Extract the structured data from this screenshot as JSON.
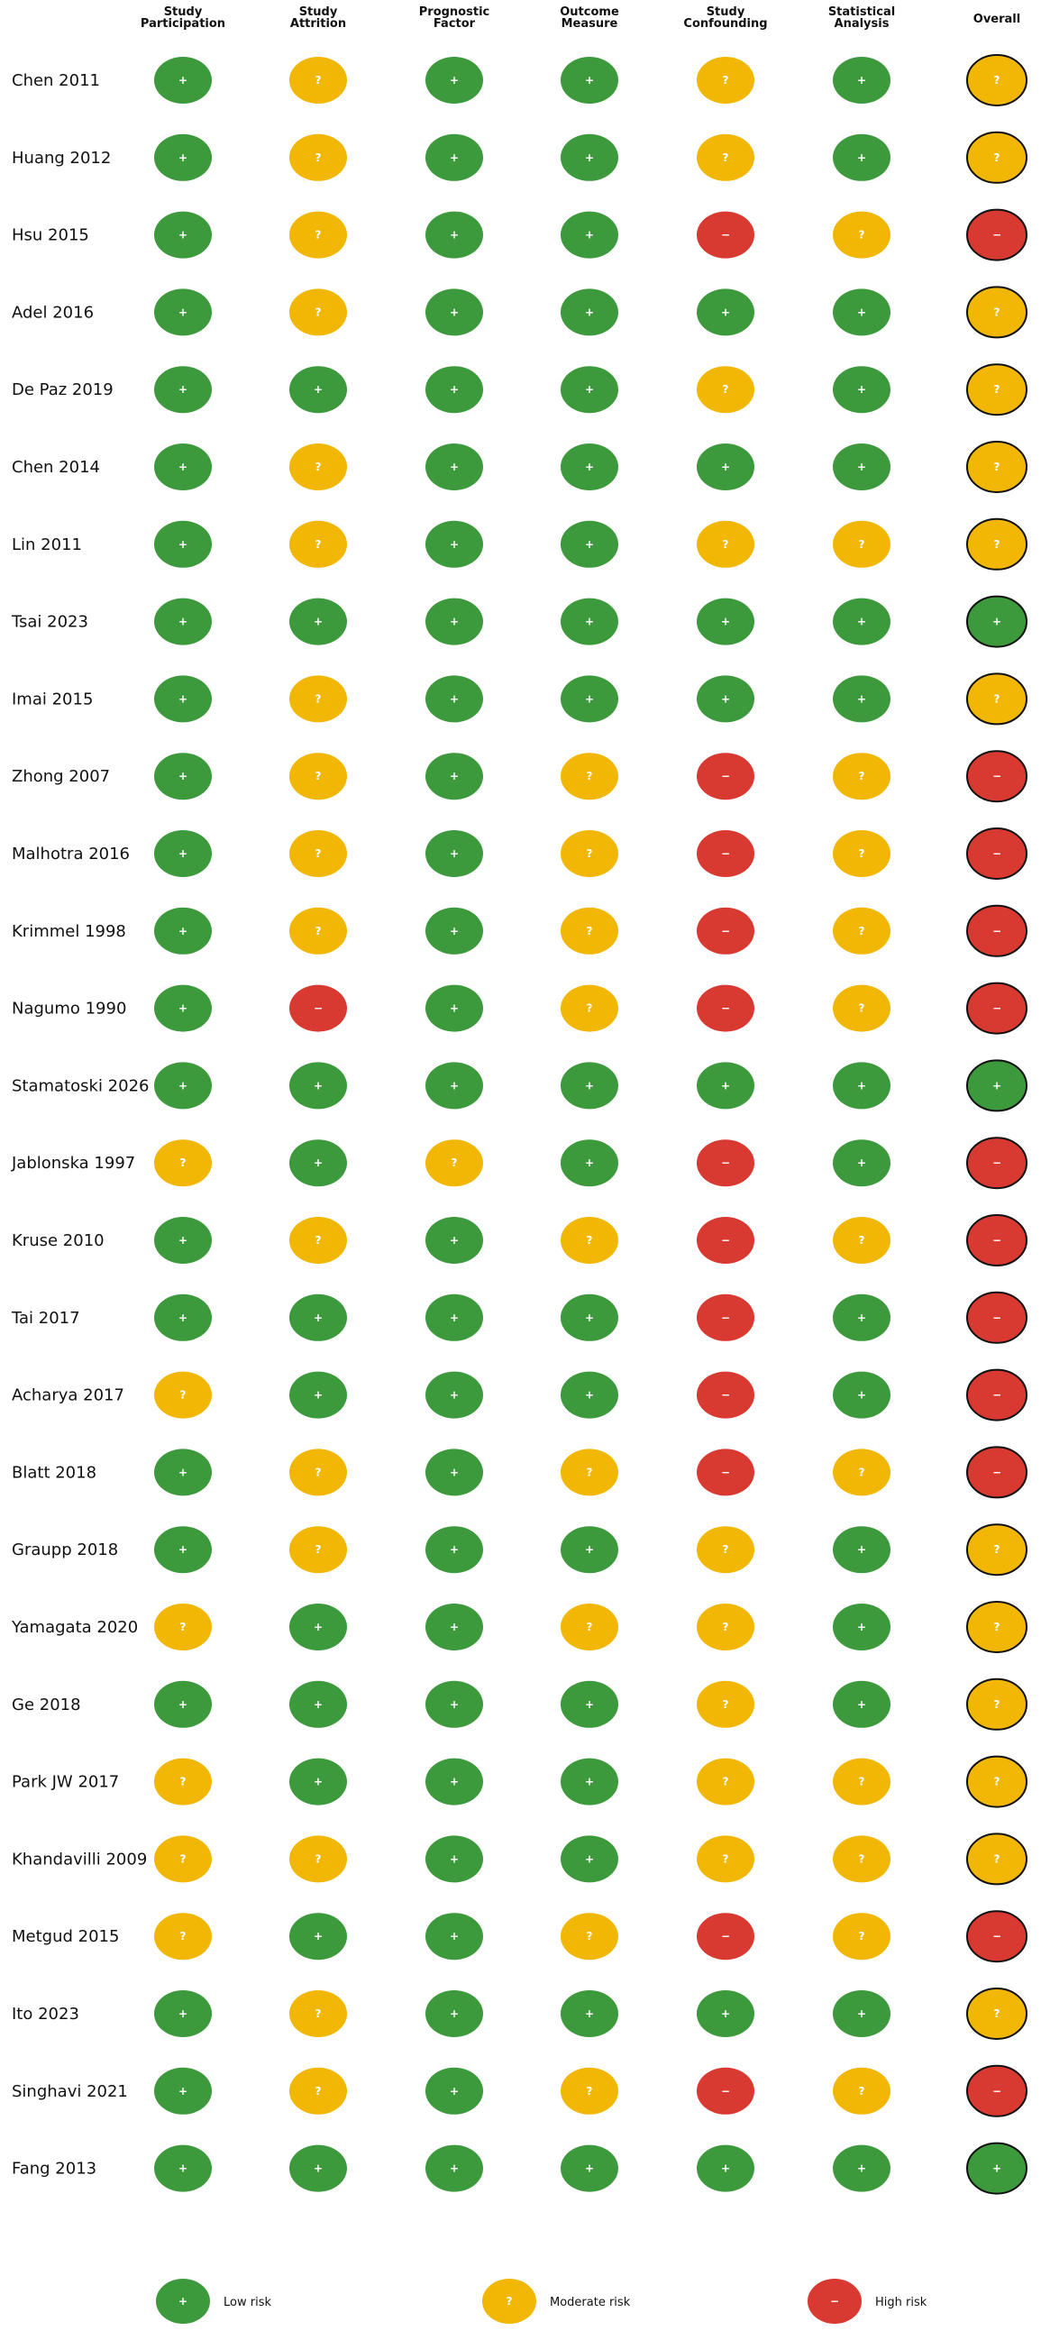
{
  "chart_data": {
    "type": "table",
    "columns": [
      "Study\nParticipation",
      "Study\nAttrition",
      "Prognostic\nFactor",
      "Outcome\nMeasure",
      "Study\nConfounding",
      "Statistical\nAnalysis",
      "Overall"
    ],
    "symbols": {
      "low": "+",
      "moderate": "?",
      "high": "−"
    },
    "colors": {
      "low": "#3c9a3c",
      "moderate": "#f2b705",
      "high": "#d83a32",
      "outline": "#111111"
    },
    "legend": [
      {
        "key": "low",
        "label": "Low risk"
      },
      {
        "key": "moderate",
        "label": "Moderate risk"
      },
      {
        "key": "high",
        "label": "High risk"
      }
    ],
    "rows": [
      {
        "study": "Chen 2011",
        "ratings": [
          "low",
          "moderate",
          "low",
          "low",
          "moderate",
          "low",
          "moderate"
        ]
      },
      {
        "study": "Huang 2012",
        "ratings": [
          "low",
          "moderate",
          "low",
          "low",
          "moderate",
          "low",
          "moderate"
        ]
      },
      {
        "study": "Hsu 2015",
        "ratings": [
          "low",
          "moderate",
          "low",
          "low",
          "high",
          "moderate",
          "high"
        ]
      },
      {
        "study": "Adel 2016",
        "ratings": [
          "low",
          "moderate",
          "low",
          "low",
          "low",
          "low",
          "moderate"
        ]
      },
      {
        "study": "De Paz 2019",
        "ratings": [
          "low",
          "low",
          "low",
          "low",
          "moderate",
          "low",
          "moderate"
        ]
      },
      {
        "study": "Chen 2014",
        "ratings": [
          "low",
          "moderate",
          "low",
          "low",
          "low",
          "low",
          "moderate"
        ]
      },
      {
        "study": "Lin 2011",
        "ratings": [
          "low",
          "moderate",
          "low",
          "low",
          "moderate",
          "moderate",
          "moderate"
        ]
      },
      {
        "study": "Tsai 2023",
        "ratings": [
          "low",
          "low",
          "low",
          "low",
          "low",
          "low",
          "low"
        ]
      },
      {
        "study": "Imai 2015",
        "ratings": [
          "low",
          "moderate",
          "low",
          "low",
          "low",
          "low",
          "moderate"
        ]
      },
      {
        "study": "Zhong 2007",
        "ratings": [
          "low",
          "moderate",
          "low",
          "moderate",
          "high",
          "moderate",
          "high"
        ]
      },
      {
        "study": "Malhotra 2016",
        "ratings": [
          "low",
          "moderate",
          "low",
          "moderate",
          "high",
          "moderate",
          "high"
        ]
      },
      {
        "study": "Krimmel 1998",
        "ratings": [
          "low",
          "moderate",
          "low",
          "moderate",
          "high",
          "moderate",
          "high"
        ]
      },
      {
        "study": "Nagumo 1990",
        "ratings": [
          "low",
          "high",
          "low",
          "moderate",
          "high",
          "moderate",
          "high"
        ]
      },
      {
        "study": "Stamatoski 2026",
        "ratings": [
          "low",
          "low",
          "low",
          "low",
          "low",
          "low",
          "low"
        ]
      },
      {
        "study": "Jablonska 1997",
        "ratings": [
          "moderate",
          "low",
          "moderate",
          "low",
          "high",
          "low",
          "high"
        ]
      },
      {
        "study": "Kruse 2010",
        "ratings": [
          "low",
          "moderate",
          "low",
          "moderate",
          "high",
          "moderate",
          "high"
        ]
      },
      {
        "study": "Tai 2017",
        "ratings": [
          "low",
          "low",
          "low",
          "low",
          "high",
          "low",
          "high"
        ]
      },
      {
        "study": "Acharya 2017",
        "ratings": [
          "moderate",
          "low",
          "low",
          "low",
          "high",
          "low",
          "high"
        ]
      },
      {
        "study": "Blatt 2018",
        "ratings": [
          "low",
          "moderate",
          "low",
          "moderate",
          "high",
          "moderate",
          "high"
        ]
      },
      {
        "study": "Graupp 2018",
        "ratings": [
          "low",
          "moderate",
          "low",
          "low",
          "moderate",
          "low",
          "moderate"
        ]
      },
      {
        "study": "Yamagata 2020",
        "ratings": [
          "moderate",
          "low",
          "low",
          "moderate",
          "moderate",
          "low",
          "moderate"
        ]
      },
      {
        "study": "Ge 2018",
        "ratings": [
          "low",
          "low",
          "low",
          "low",
          "moderate",
          "low",
          "moderate"
        ]
      },
      {
        "study": "Park JW 2017",
        "ratings": [
          "moderate",
          "low",
          "low",
          "low",
          "moderate",
          "moderate",
          "moderate"
        ]
      },
      {
        "study": "Khandavilli 2009",
        "ratings": [
          "moderate",
          "moderate",
          "low",
          "low",
          "moderate",
          "moderate",
          "moderate"
        ]
      },
      {
        "study": "Metgud 2015",
        "ratings": [
          "moderate",
          "low",
          "low",
          "moderate",
          "high",
          "moderate",
          "high"
        ]
      },
      {
        "study": "Ito 2023",
        "ratings": [
          "low",
          "moderate",
          "low",
          "low",
          "low",
          "low",
          "moderate"
        ]
      },
      {
        "study": "Singhavi 2021",
        "ratings": [
          "low",
          "moderate",
          "low",
          "moderate",
          "high",
          "moderate",
          "high"
        ]
      },
      {
        "study": "Fang 2013",
        "ratings": [
          "low",
          "low",
          "low",
          "low",
          "low",
          "low",
          "low"
        ]
      }
    ]
  }
}
